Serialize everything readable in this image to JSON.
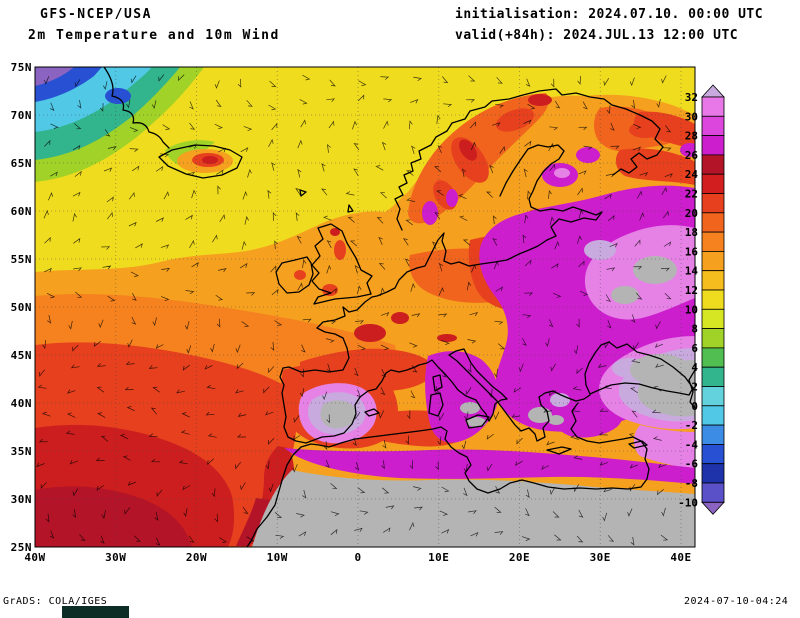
{
  "header": {
    "model": "GFS-NCEP/USA",
    "product": "2m Temperature and 10m Wind",
    "init": "initialisation: 2024.07.10. 00:00 UTC",
    "valid": "valid(+84h): 2024.JUL.13 12:00 UTC"
  },
  "axes": {
    "lat": [
      "75N",
      "70N",
      "65N",
      "60N",
      "55N",
      "50N",
      "45N",
      "40N",
      "35N",
      "30N",
      "25N"
    ],
    "lon": [
      "40W",
      "30W",
      "20W",
      "10W",
      "0",
      "10E",
      "20E",
      "30E",
      "40E"
    ]
  },
  "colorbar": {
    "labels": [
      "32",
      "30",
      "28",
      "26",
      "24",
      "22",
      "20",
      "18",
      "16",
      "14",
      "12",
      "10",
      "8",
      "6",
      "4",
      "2",
      "0",
      "-2",
      "-4",
      "-6",
      "-8",
      "-10"
    ],
    "colors": [
      "#c8aade",
      "#e878e8",
      "#dc46dc",
      "#cc1ecc",
      "#b41428",
      "#d21e1e",
      "#e6401e",
      "#f0641e",
      "#f5821e",
      "#f5a01e",
      "#f5be1e",
      "#f0dc1e",
      "#d7e623",
      "#a0d228",
      "#50be50",
      "#32b48c",
      "#64d2dc",
      "#50c8e6",
      "#3c8ce6",
      "#2850d2",
      "#1e32aa",
      "#5a50c8",
      "#8a64c0"
    ],
    "above_scale_color": "#b4b4b4"
  },
  "footer": {
    "left": "GrADS: COLA/IGES",
    "right": "2024-07-10-04:24"
  }
}
